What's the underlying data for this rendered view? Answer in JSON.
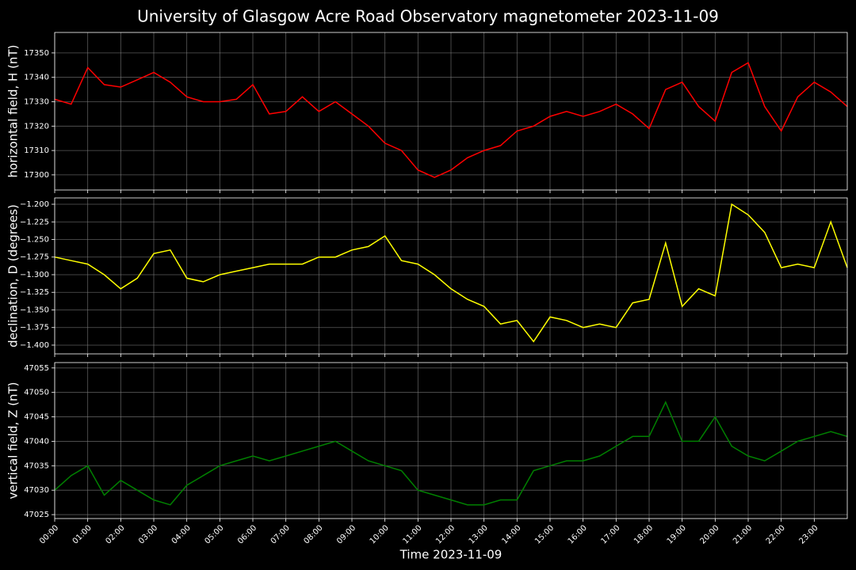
{
  "chart_data": [
    {
      "type": "line",
      "title": "University of Glasgow Acre Road Observatory magnetometer 2023-11-09",
      "ylabel": "horizontal field, H (nT)",
      "color": "#ff0000",
      "grid": true,
      "x": [
        0,
        0.5,
        1,
        1.5,
        2,
        2.5,
        3,
        3.5,
        4,
        4.5,
        5,
        5.5,
        6,
        6.5,
        7,
        7.5,
        8,
        8.5,
        9,
        9.5,
        10,
        10.5,
        11,
        11.5,
        12,
        12.5,
        13,
        13.5,
        14,
        14.5,
        15,
        15.5,
        16,
        16.5,
        17,
        17.5,
        18,
        18.5,
        19,
        19.5,
        20,
        20.5,
        21,
        21.5,
        22,
        22.5,
        23,
        23.5,
        24
      ],
      "values": [
        17331,
        17329,
        17344,
        17337,
        17336,
        17339,
        17342,
        17338,
        17332,
        17330,
        17330,
        17331,
        17337,
        17325,
        17326,
        17332,
        17326,
        17330,
        17325,
        17320,
        17313,
        17310,
        17302,
        17299,
        17302,
        17307,
        17310,
        17312,
        17318,
        17320,
        17324,
        17326,
        17324,
        17326,
        17329,
        17325,
        17319,
        17335,
        17338,
        17328,
        17322,
        17342,
        17346,
        17328,
        17318,
        17332,
        17338,
        17334,
        17328
      ],
      "xlim": [
        0,
        24
      ],
      "xticks": [
        0,
        1,
        2,
        3,
        4,
        5,
        6,
        7,
        8,
        9,
        10,
        11,
        12,
        13,
        14,
        15,
        16,
        17,
        18,
        19,
        20,
        21,
        22,
        23
      ],
      "ylim": [
        17293.8,
        17358.4
      ],
      "yticks": [
        17300,
        17310,
        17320,
        17330,
        17340,
        17350
      ]
    },
    {
      "type": "line",
      "ylabel": "declination, D (degrees)",
      "color": "#ffff00",
      "grid": true,
      "x": [
        0,
        0.5,
        1,
        1.5,
        2,
        2.5,
        3,
        3.5,
        4,
        4.5,
        5,
        5.5,
        6,
        6.5,
        7,
        7.5,
        8,
        8.5,
        9,
        9.5,
        10,
        10.5,
        11,
        11.5,
        12,
        12.5,
        13,
        13.5,
        14,
        14.5,
        15,
        15.5,
        16,
        16.5,
        17,
        17.5,
        18,
        18.5,
        19,
        19.5,
        20,
        20.5,
        21,
        21.5,
        22,
        22.5,
        23,
        23.5,
        24
      ],
      "values": [
        -1.275,
        -1.28,
        -1.285,
        -1.3,
        -1.32,
        -1.305,
        -1.27,
        -1.265,
        -1.305,
        -1.31,
        -1.3,
        -1.295,
        -1.29,
        -1.285,
        -1.285,
        -1.285,
        -1.275,
        -1.275,
        -1.265,
        -1.26,
        -1.245,
        -1.28,
        -1.285,
        -1.3,
        -1.32,
        -1.335,
        -1.345,
        -1.37,
        -1.365,
        -1.395,
        -1.36,
        -1.365,
        -1.375,
        -1.37,
        -1.375,
        -1.34,
        -1.335,
        -1.255,
        -1.345,
        -1.32,
        -1.33,
        -1.2,
        -1.215,
        -1.24,
        -1.29,
        -1.285,
        -1.29,
        -1.225,
        -1.29
      ],
      "xlim": [
        0,
        24
      ],
      "xticks": [
        0,
        1,
        2,
        3,
        4,
        5,
        6,
        7,
        8,
        9,
        10,
        11,
        12,
        13,
        14,
        15,
        16,
        17,
        18,
        19,
        20,
        21,
        22,
        23
      ],
      "ylim": [
        -1.4124,
        -1.191
      ],
      "yticks": [
        {
          "value": -1.2,
          "label": "−1.200"
        },
        {
          "value": -1.225,
          "label": "−1.225"
        },
        {
          "value": -1.25,
          "label": "−1.250"
        },
        {
          "value": -1.275,
          "label": "−1.275"
        },
        {
          "value": -1.3,
          "label": "−1.300"
        },
        {
          "value": -1.325,
          "label": "−1.325"
        },
        {
          "value": -1.35,
          "label": "−1.350"
        },
        {
          "value": -1.375,
          "label": "−1.375"
        },
        {
          "value": -1.4,
          "label": "−1.400"
        }
      ]
    },
    {
      "type": "line",
      "ylabel": "vertical field, Z (nT)",
      "xlabel": "Time 2023-11-09",
      "color": "#008000",
      "grid": true,
      "x": [
        0,
        0.5,
        1,
        1.5,
        2,
        2.5,
        3,
        3.5,
        4,
        4.5,
        5,
        5.5,
        6,
        6.5,
        7,
        7.5,
        8,
        8.5,
        9,
        9.5,
        10,
        10.5,
        11,
        11.5,
        12,
        12.5,
        13,
        13.5,
        14,
        14.5,
        15,
        15.5,
        16,
        16.5,
        17,
        17.5,
        18,
        18.5,
        19,
        19.5,
        20,
        20.5,
        21,
        21.5,
        22,
        22.5,
        23,
        23.5,
        24
      ],
      "values": [
        47030,
        47033,
        47035,
        47029,
        47032,
        47030,
        47028,
        47027,
        47031,
        47033,
        47035,
        47036,
        47037,
        47036,
        47037,
        47038,
        47039,
        47040,
        47038,
        47036,
        47035,
        47034,
        47030,
        47029,
        47028,
        47027,
        47027,
        47028,
        47028,
        47034,
        47035,
        47036,
        47036,
        47037,
        47039,
        47041,
        47041,
        47048,
        47040,
        47040,
        47045,
        47039,
        47037,
        47036,
        47038,
        47040,
        47041,
        47042,
        47041
      ],
      "xlim": [
        0,
        24
      ],
      "xticks": [
        {
          "value": 0,
          "label": "00:00"
        },
        {
          "value": 1,
          "label": "01:00"
        },
        {
          "value": 2,
          "label": "02:00"
        },
        {
          "value": 3,
          "label": "03:00"
        },
        {
          "value": 4,
          "label": "04:00"
        },
        {
          "value": 5,
          "label": "05:00"
        },
        {
          "value": 6,
          "label": "06:00"
        },
        {
          "value": 7,
          "label": "07:00"
        },
        {
          "value": 8,
          "label": "08:00"
        },
        {
          "value": 9,
          "label": "09:00"
        },
        {
          "value": 10,
          "label": "10:00"
        },
        {
          "value": 11,
          "label": "11:00"
        },
        {
          "value": 12,
          "label": "12:00"
        },
        {
          "value": 13,
          "label": "13:00"
        },
        {
          "value": 14,
          "label": "14:00"
        },
        {
          "value": 15,
          "label": "15:00"
        },
        {
          "value": 16,
          "label": "16:00"
        },
        {
          "value": 17,
          "label": "17:00"
        },
        {
          "value": 18,
          "label": "18:00"
        },
        {
          "value": 19,
          "label": "19:00"
        },
        {
          "value": 20,
          "label": "20:00"
        },
        {
          "value": 21,
          "label": "21:00"
        },
        {
          "value": 22,
          "label": "22:00"
        },
        {
          "value": 23,
          "label": "23:00"
        }
      ],
      "ylim": [
        47024.2,
        47056.1
      ],
      "yticks": [
        47025,
        47030,
        47035,
        47040,
        47045,
        47050,
        47055
      ]
    }
  ]
}
